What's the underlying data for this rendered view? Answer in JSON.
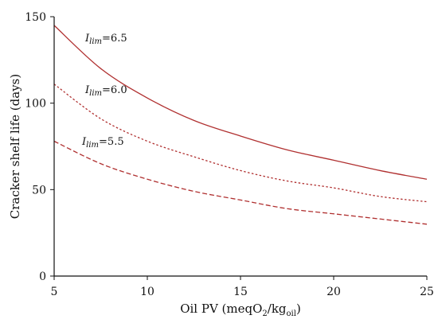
{
  "chart_data": {
    "type": "line",
    "title": "",
    "xlabel": {
      "main": "Oil PV (meqO",
      "sub1": "2",
      "mid": "/kg",
      "sub2": "oil",
      "end": ")"
    },
    "ylabel": "Cracker shelf life (days)",
    "xlim": [
      5,
      25
    ],
    "ylim": [
      0,
      150
    ],
    "xticks": [
      "5",
      "10",
      "15",
      "20",
      "25"
    ],
    "yticks": [
      "0",
      "50",
      "100",
      "150"
    ],
    "grid": false,
    "color": "#b03030",
    "series": [
      {
        "name": "I_lim=6.5",
        "annotation": {
          "base": "I",
          "sub": "lim",
          "value": "=6.5"
        },
        "dash": "solid",
        "x": [
          5,
          7.5,
          10,
          12.5,
          15,
          17.5,
          20,
          22.5,
          25
        ],
        "y": [
          145,
          120,
          103,
          90,
          81,
          73,
          67,
          61,
          56
        ]
      },
      {
        "name": "I_lim=6.0",
        "annotation": {
          "base": "I",
          "sub": "lim",
          "value": "=6.0"
        },
        "dash": "dotted",
        "x": [
          5,
          7.5,
          10,
          12.5,
          15,
          17.5,
          20,
          22.5,
          25
        ],
        "y": [
          111,
          91,
          78,
          69,
          61,
          55,
          51,
          46,
          43
        ]
      },
      {
        "name": "I_lim=5.5",
        "annotation": {
          "base": "I",
          "sub": "lim",
          "value": "=5.5"
        },
        "dash": "dashed",
        "x": [
          5,
          7.5,
          10,
          12.5,
          15,
          17.5,
          20,
          22.5,
          25
        ],
        "y": [
          78,
          65,
          56,
          49,
          44,
          39,
          36,
          33,
          30
        ]
      }
    ]
  }
}
